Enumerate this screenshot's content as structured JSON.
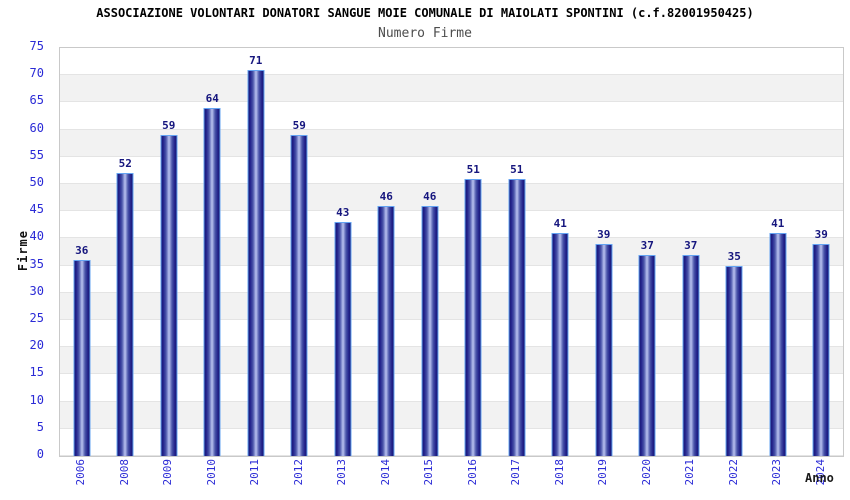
{
  "header": {
    "title": "ASSOCIAZIONE VOLONTARI DONATORI SANGUE MOIE COMUNALE DI MAIOLATI SPONTINI (c.f.82001950425)",
    "subtitle": "Numero Firme"
  },
  "chart_data": {
    "type": "bar",
    "title": "ASSOCIAZIONE VOLONTARI DONATORI SANGUE MOIE COMUNALE DI MAIOLATI SPONTINI (c.f.82001950425)",
    "subtitle": "Numero Firme",
    "categories": [
      "2006",
      "2008",
      "2009",
      "2010",
      "2011",
      "2012",
      "2013",
      "2014",
      "2015",
      "2016",
      "2017",
      "2018",
      "2019",
      "2020",
      "2021",
      "2022",
      "2023",
      "2024"
    ],
    "values": [
      36,
      52,
      59,
      64,
      71,
      59,
      43,
      46,
      46,
      51,
      51,
      41,
      39,
      37,
      37,
      35,
      41,
      39
    ],
    "xlabel": "Anno",
    "ylabel": "Firme",
    "ylim": [
      0,
      75
    ],
    "ytick_step": 5,
    "legend": "none",
    "grid": "horizontal lines every 5 with alternating background bands",
    "colors": {
      "bar_edge": "#23238c",
      "bar_highlight": "#b4bcec",
      "bar_outline": "#63a3f2",
      "value_label": "#16167e",
      "axis_tick_label": "#2b2bd6",
      "band_alt": "#f2f2f2",
      "grid_line": "#e4e4e4",
      "plot_border": "#c9c9c9",
      "title": "#000000",
      "subtitle": "#4d4d4d"
    }
  }
}
